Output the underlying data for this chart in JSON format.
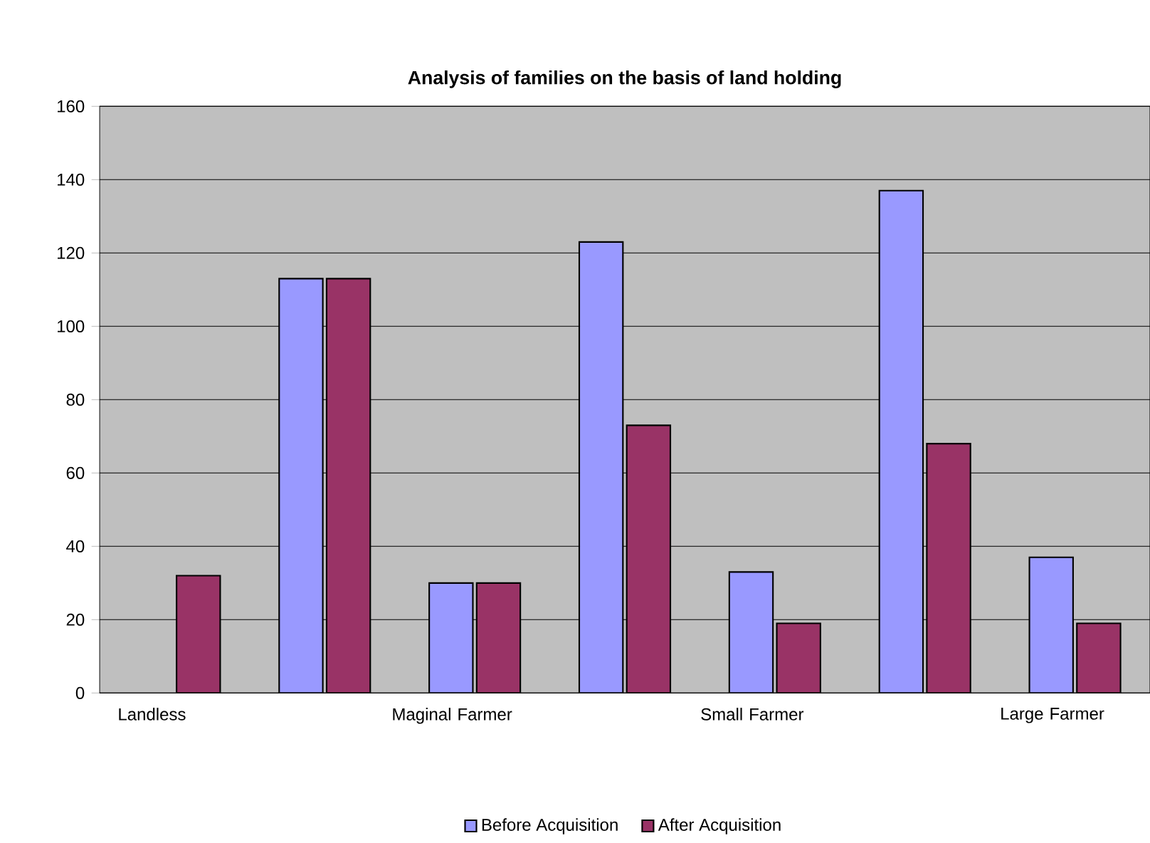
{
  "chart_data": {
    "type": "bar",
    "title": "Analysis of families on the basis of land holding",
    "categories": [
      "Landless",
      null,
      "Maginal Farmer",
      null,
      "Small Farmer",
      null,
      "Large Farmer"
    ],
    "series": [
      {
        "name": "Before Acquisition",
        "color": "#9999ff",
        "values": [
          null,
          113,
          30,
          123,
          33,
          137,
          37
        ]
      },
      {
        "name": "After Acquisition",
        "color": "#993366",
        "values": [
          32,
          113,
          30,
          73,
          19,
          68,
          19
        ]
      }
    ],
    "ylim": [
      0,
      160
    ],
    "yticks": [
      0,
      20,
      40,
      60,
      80,
      100,
      120,
      140,
      160
    ],
    "grid": "y",
    "legend": "bottom"
  }
}
